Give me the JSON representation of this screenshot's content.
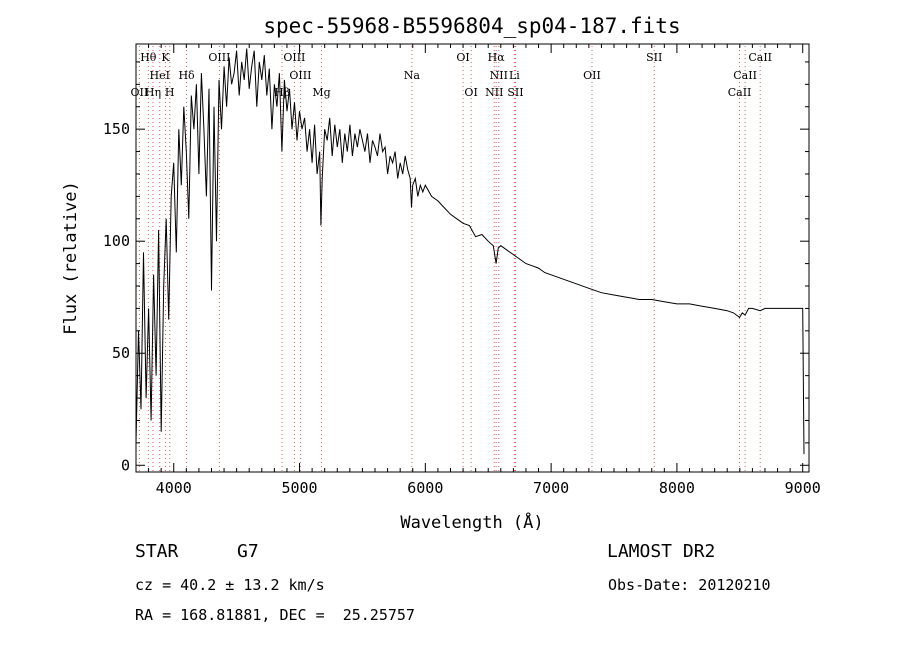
{
  "chart_data": {
    "type": "line",
    "title": "spec-55968-B5596804_sp04-187.fits",
    "xlabel": "Wavelength (Å)",
    "ylabel": "Flux (relative)",
    "xlim": [
      3700,
      9050
    ],
    "ylim": [
      -3,
      188
    ],
    "xticks": [
      4000,
      5000,
      6000,
      7000,
      8000,
      9000
    ],
    "yticks": [
      0,
      50,
      100,
      150
    ],
    "grid": false,
    "series": [
      {
        "x": [
          3700,
          3720,
          3740,
          3760,
          3780,
          3800,
          3820,
          3840,
          3860,
          3880,
          3900,
          3920,
          3940,
          3960,
          3980,
          4000,
          4020,
          4040,
          4060,
          4080,
          4100,
          4120,
          4140,
          4160,
          4180,
          4200,
          4220,
          4240,
          4260,
          4280,
          4300,
          4320,
          4340,
          4360,
          4380,
          4400,
          4420,
          4440,
          4460,
          4480,
          4500,
          4520,
          4540,
          4560,
          4580,
          4600,
          4620,
          4640,
          4660,
          4680,
          4700,
          4720,
          4740,
          4760,
          4780,
          4800,
          4820,
          4840,
          4860,
          4880,
          4900,
          4920,
          4940,
          4960,
          4980,
          5000,
          5020,
          5040,
          5060,
          5080,
          5100,
          5120,
          5140,
          5160,
          5170,
          5180,
          5200,
          5220,
          5240,
          5260,
          5280,
          5300,
          5320,
          5340,
          5360,
          5380,
          5400,
          5420,
          5440,
          5460,
          5480,
          5500,
          5520,
          5540,
          5560,
          5580,
          5600,
          5620,
          5640,
          5660,
          5680,
          5700,
          5720,
          5740,
          5760,
          5780,
          5800,
          5820,
          5840,
          5860,
          5880,
          5890,
          5900,
          5920,
          5940,
          5960,
          5980,
          6000,
          6050,
          6100,
          6150,
          6200,
          6250,
          6300,
          6350,
          6400,
          6450,
          6500,
          6540,
          6563,
          6580,
          6600,
          6650,
          6700,
          6750,
          6800,
          6850,
          6900,
          6950,
          7000,
          7100,
          7200,
          7300,
          7400,
          7500,
          7600,
          7700,
          7800,
          7900,
          8000,
          8100,
          8200,
          8300,
          8400,
          8450,
          8498,
          8520,
          8542,
          8570,
          8600,
          8662,
          8700,
          8800,
          8900,
          8990,
          9000,
          9010
        ],
        "y": [
          10,
          60,
          25,
          95,
          30,
          70,
          20,
          85,
          40,
          105,
          15,
          80,
          110,
          65,
          120,
          135,
          95,
          150,
          125,
          160,
          140,
          110,
          165,
          150,
          170,
          130,
          175,
          150,
          120,
          168,
          78,
          160,
          100,
          172,
          150,
          178,
          160,
          182,
          170,
          175,
          185,
          165,
          180,
          172,
          186,
          168,
          178,
          185,
          160,
          180,
          172,
          183,
          165,
          177,
          150,
          170,
          160,
          175,
          140,
          172,
          158,
          168,
          150,
          162,
          145,
          158,
          150,
          155,
          140,
          150,
          135,
          152,
          130,
          140,
          107,
          128,
          150,
          145,
          155,
          138,
          152,
          142,
          150,
          135,
          148,
          140,
          152,
          138,
          148,
          142,
          150,
          145,
          140,
          148,
          135,
          145,
          142,
          138,
          148,
          140,
          142,
          130,
          138,
          135,
          140,
          128,
          135,
          130,
          138,
          132,
          128,
          115,
          125,
          128,
          120,
          125,
          122,
          125,
          120,
          118,
          115,
          112,
          110,
          108,
          107,
          102,
          103,
          100,
          98,
          90,
          97,
          98,
          96,
          94,
          92,
          90,
          89,
          88,
          86,
          85,
          83,
          81,
          79,
          77,
          76,
          75,
          74,
          74,
          73,
          72,
          72,
          71,
          70,
          69,
          68,
          66,
          68,
          67,
          70,
          70,
          69,
          70,
          70,
          70,
          70,
          70,
          5
        ]
      }
    ],
    "annotations": [
      {
        "label": "Hθ",
        "x": 3798,
        "row": 1
      },
      {
        "label": "K",
        "x": 3934,
        "row": 1
      },
      {
        "label": "OIII",
        "x": 4363,
        "row": 1
      },
      {
        "label": "OIII",
        "x": 4959,
        "row": 1
      },
      {
        "label": "OI",
        "x": 6300,
        "row": 1
      },
      {
        "label": "Hα",
        "x": 6563,
        "row": 1
      },
      {
        "label": "SII",
        "x": 7820,
        "row": 1
      },
      {
        "label": "CaII",
        "x": 8662,
        "row": 1
      },
      {
        "label": "HeI",
        "x": 3889,
        "row": 2
      },
      {
        "label": "Hδ",
        "x": 4102,
        "row": 2
      },
      {
        "label": "OIII",
        "x": 5007,
        "row": 2
      },
      {
        "label": "Na",
        "x": 5893,
        "row": 2
      },
      {
        "label": "NII",
        "x": 6584,
        "row": 2
      },
      {
        "label": "Li",
        "x": 6708,
        "row": 2
      },
      {
        "label": "OII",
        "x": 7325,
        "row": 2
      },
      {
        "label": "CaII",
        "x": 8542,
        "row": 2
      },
      {
        "label": "OII",
        "x": 3727,
        "row": 3
      },
      {
        "label": "Hη",
        "x": 3835,
        "row": 3
      },
      {
        "label": "H",
        "x": 3968,
        "row": 3
      },
      {
        "label": "Hβ",
        "x": 4861,
        "row": 3
      },
      {
        "label": "Mg",
        "x": 5175,
        "row": 3
      },
      {
        "label": "OI",
        "x": 6364,
        "row": 3
      },
      {
        "label": "NII",
        "x": 6548,
        "row": 3
      },
      {
        "label": "SII",
        "x": 6717,
        "row": 3
      },
      {
        "label": "CaII",
        "x": 8498,
        "row": 3
      }
    ]
  },
  "info": {
    "object_class": "STAR",
    "subclass": "G7",
    "redshift": "cz = 40.2 ± 13.2 km/s",
    "coords": "RA = 168.81881, DEC =  25.25757",
    "survey": "LAMOST DR2",
    "obs_date": "Obs-Date: 20120210"
  }
}
